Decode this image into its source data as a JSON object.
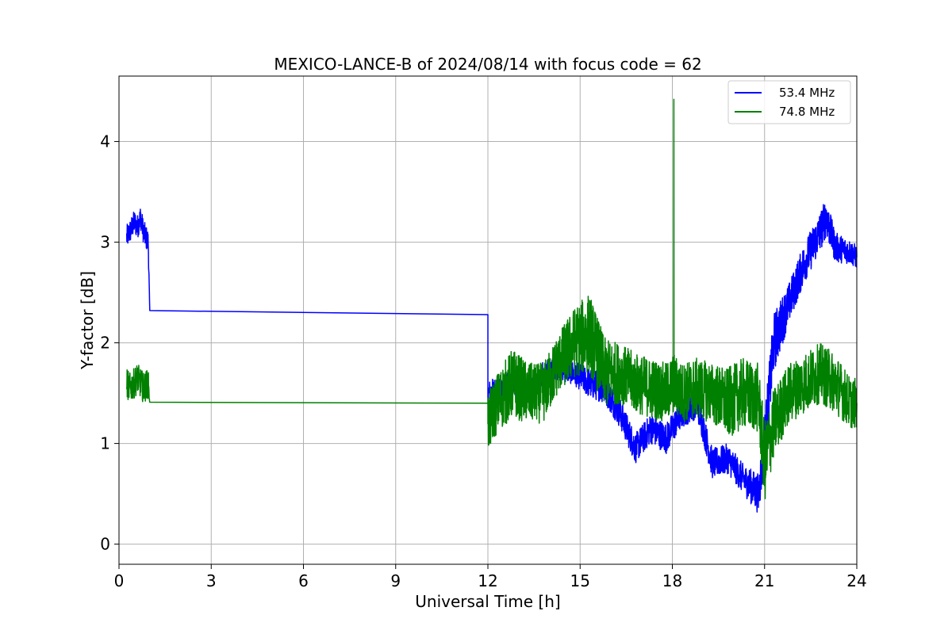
{
  "chart_data": {
    "type": "line",
    "title": "MEXICO-LANCE-B of 2024/08/14 with focus code = 62",
    "xlabel": "Universal Time [h]",
    "ylabel": "Y-factor [dB]",
    "xlim": [
      0,
      24
    ],
    "ylim": [
      -0.2,
      4.65
    ],
    "xticks": [
      "0",
      "3",
      "6",
      "9",
      "12",
      "15",
      "18",
      "21",
      "24"
    ],
    "yticks": [
      "0",
      "1",
      "2",
      "3",
      "4"
    ],
    "grid": true,
    "legend_position": "top-right",
    "series": [
      {
        "name": "53.4 MHz",
        "color": "#0000ff",
        "x": [
          0.25,
          0.35,
          0.5,
          0.6,
          0.7,
          0.8,
          0.95,
          1.0,
          12.0,
          12.0,
          12.3,
          12.8,
          13.3,
          13.8,
          14.3,
          14.8,
          15.3,
          15.8,
          16.3,
          16.8,
          17.3,
          17.8,
          18.3,
          18.8,
          19.3,
          19.8,
          20.3,
          20.8,
          21.0,
          21.3,
          21.8,
          22.3,
          22.8,
          23.0,
          23.3,
          23.8,
          24.0
        ],
        "y": [
          3.05,
          3.1,
          3.2,
          3.15,
          3.25,
          3.1,
          3.0,
          2.32,
          2.28,
          1.5,
          1.55,
          1.6,
          1.5,
          1.7,
          1.75,
          1.7,
          1.6,
          1.55,
          1.3,
          0.95,
          1.15,
          1.05,
          1.3,
          1.4,
          0.8,
          0.85,
          0.65,
          0.5,
          1.0,
          2.0,
          2.4,
          2.8,
          3.1,
          3.25,
          2.95,
          2.9,
          2.85
        ],
        "noise": [
          0.12,
          0.12,
          0.12,
          0.12,
          0.12,
          0.12,
          0.12,
          0,
          0,
          0.12,
          0.12,
          0.12,
          0.12,
          0.12,
          0.12,
          0.12,
          0.15,
          0.15,
          0.15,
          0.15,
          0.15,
          0.15,
          0.15,
          0.15,
          0.15,
          0.15,
          0.15,
          0.2,
          0.3,
          0.3,
          0.2,
          0.2,
          0.2,
          0.2,
          0.15,
          0.12,
          0.12
        ]
      },
      {
        "name": "74.8 MHz",
        "color": "#008000",
        "x": [
          0.25,
          0.35,
          0.5,
          0.6,
          0.7,
          0.8,
          0.95,
          1.0,
          12.0,
          12.0,
          12.3,
          12.8,
          13.3,
          13.8,
          14.3,
          14.8,
          15.3,
          15.8,
          16.3,
          16.8,
          17.3,
          17.8,
          18.05,
          18.3,
          18.8,
          19.3,
          19.8,
          20.3,
          20.8,
          21.0,
          21.3,
          21.8,
          22.3,
          22.8,
          23.3,
          23.8,
          24.0
        ],
        "y": [
          1.6,
          1.55,
          1.6,
          1.65,
          1.6,
          1.55,
          1.6,
          1.41,
          1.4,
          1.2,
          1.4,
          1.6,
          1.5,
          1.5,
          1.8,
          2.0,
          2.1,
          1.7,
          1.7,
          1.6,
          1.55,
          1.5,
          1.6,
          1.5,
          1.55,
          1.5,
          1.4,
          1.5,
          1.45,
          0.8,
          1.2,
          1.5,
          1.6,
          1.7,
          1.6,
          1.4,
          1.4
        ],
        "noise": [
          0.15,
          0.15,
          0.15,
          0.15,
          0.15,
          0.15,
          0.15,
          0,
          0,
          0.3,
          0.3,
          0.35,
          0.3,
          0.3,
          0.3,
          0.35,
          0.4,
          0.35,
          0.3,
          0.3,
          0.3,
          0.3,
          0.3,
          0.3,
          0.3,
          0.3,
          0.35,
          0.35,
          0.35,
          0.4,
          0.35,
          0.3,
          0.3,
          0.3,
          0.3,
          0.25,
          0.25
        ]
      }
    ],
    "annotations": [
      {
        "series": "74.8 MHz",
        "x": 18.05,
        "y": 4.42
      }
    ]
  }
}
